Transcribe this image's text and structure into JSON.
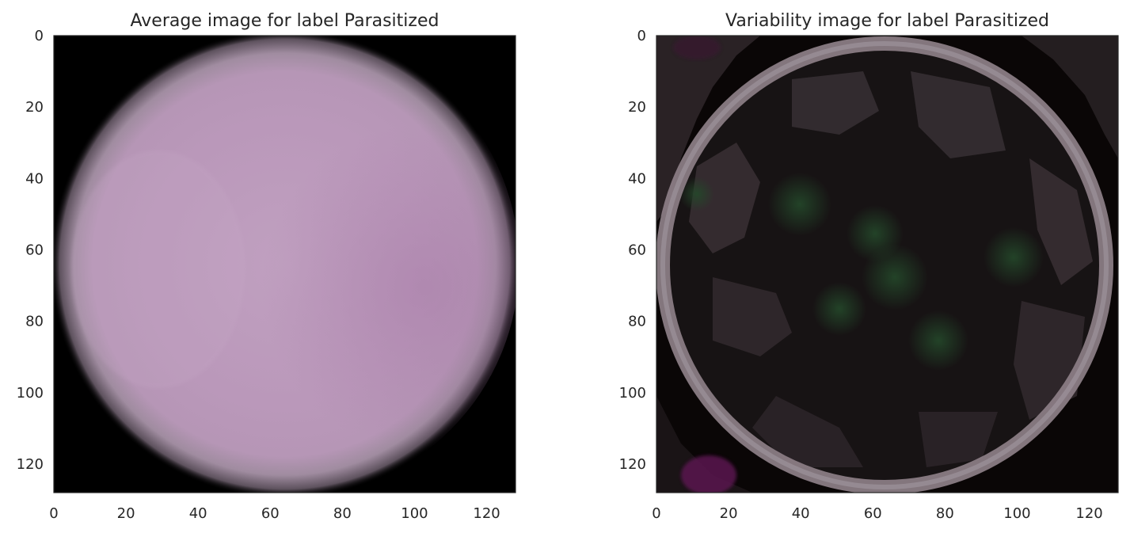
{
  "chart_data": [
    {
      "type": "heatmap",
      "title": "Average image for label Parasitized",
      "xlabel": "",
      "ylabel": "",
      "xlim": [
        0,
        128
      ],
      "ylim": [
        128,
        0
      ],
      "x_ticks": [
        0,
        20,
        40,
        60,
        80,
        100,
        120
      ],
      "y_ticks": [
        0,
        20,
        40,
        60,
        80,
        100,
        120
      ],
      "image": {
        "background": "#000000",
        "cell_center": [
          64,
          64
        ],
        "cell_radius": 64,
        "cell_colors": [
          "#c4a6c4",
          "#b792b7",
          "#a47fa4"
        ],
        "rim_color": "#d8d0d8"
      }
    },
    {
      "type": "heatmap",
      "title": "Variability image for label Parasitized",
      "xlabel": "",
      "ylabel": "",
      "xlim": [
        0,
        128
      ],
      "ylim": [
        128,
        0
      ],
      "x_ticks": [
        0,
        20,
        40,
        60,
        80,
        100,
        120
      ],
      "y_ticks": [
        0,
        20,
        40,
        60,
        80,
        100,
        120
      ],
      "image": {
        "background": "#0a0606",
        "cell_center": [
          64,
          64
        ],
        "cell_radius": 63,
        "interior_color": "#171314",
        "ring_color": "#8a7c84",
        "patch_color": "#3a3034",
        "spot_color": "#1d3a1d"
      }
    }
  ]
}
